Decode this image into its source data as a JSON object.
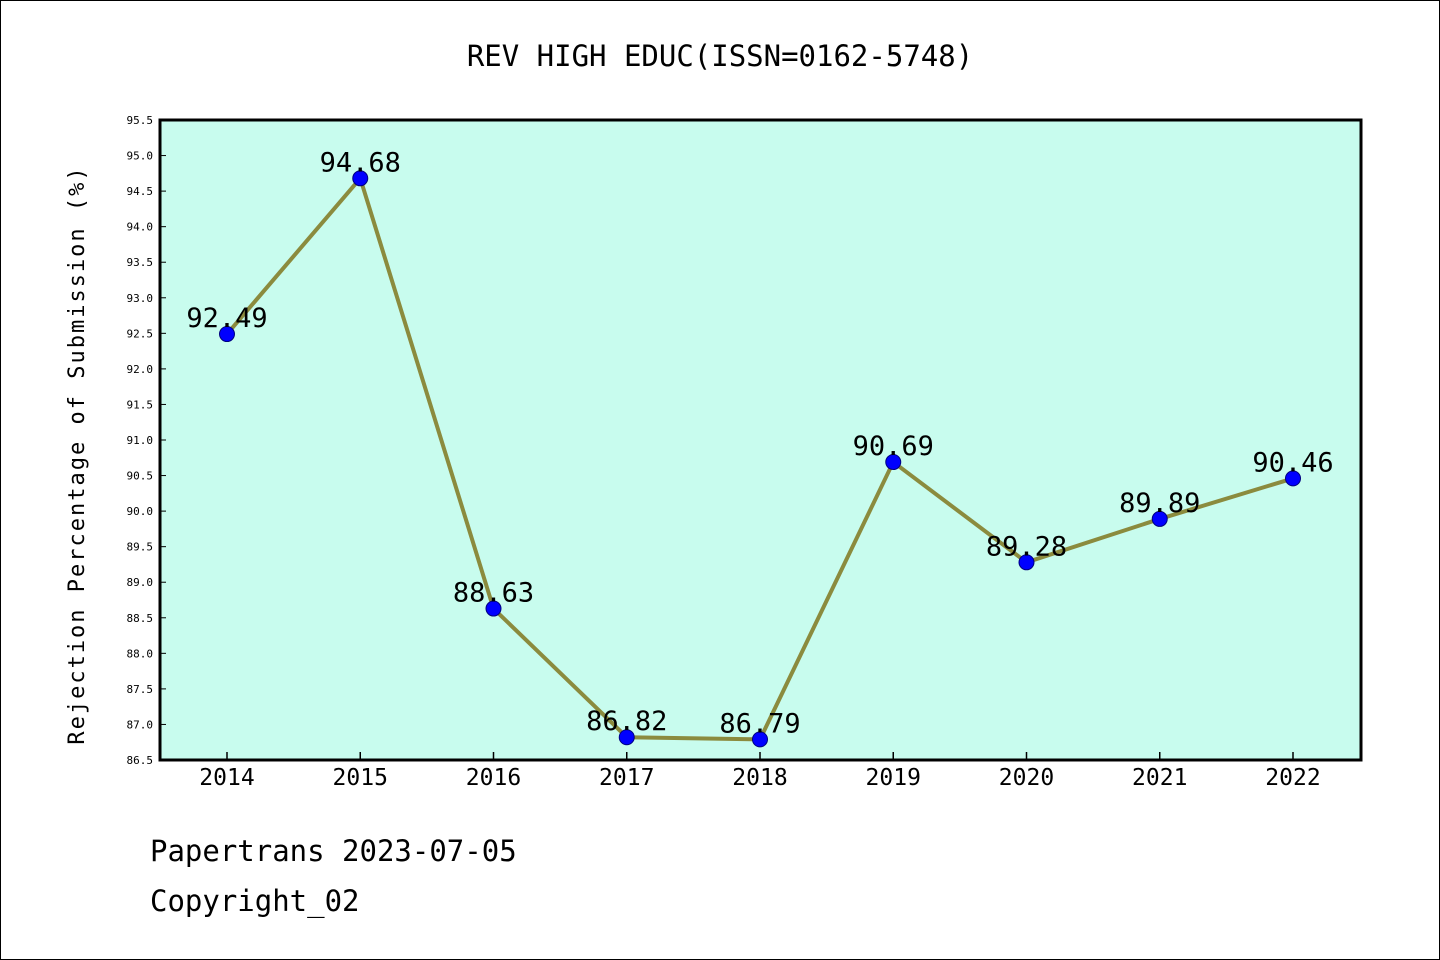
{
  "chart_data": {
    "type": "line",
    "title": "REV HIGH EDUC(ISSN=0162-5748)",
    "xlabel": "",
    "ylabel": "Rejection Percentage of Submission (%)",
    "categories": [
      "2014",
      "2015",
      "2016",
      "2017",
      "2018",
      "2019",
      "2020",
      "2021",
      "2022"
    ],
    "series": [
      {
        "values": [
          92.49,
          94.68,
          88.63,
          86.82,
          86.79,
          90.69,
          89.28,
          89.89,
          90.46
        ],
        "labels": [
          "92.49",
          "94.68",
          "88.63",
          "86.82",
          "86.79",
          "90.69",
          "89.28",
          "89.89",
          "90.46"
        ]
      }
    ],
    "ylim": [
      86.5,
      95.5
    ],
    "yticks": [
      "86.5",
      "87.0",
      "87.5",
      "88.0",
      "88.5",
      "89.0",
      "89.5",
      "90.0",
      "90.5",
      "91.0",
      "91.5",
      "92.0",
      "92.5",
      "93.0",
      "93.5",
      "94.0",
      "94.5",
      "95.0",
      "95.5"
    ],
    "grid": false,
    "colors": {
      "plot_background": "#c8fcee",
      "line": "#8b8b3e",
      "marker": "#0000ff",
      "marker_edge": "#000080"
    }
  },
  "footer": {
    "date_line": "Papertrans 2023-07-05",
    "copyright_line": "Copyright_02"
  }
}
